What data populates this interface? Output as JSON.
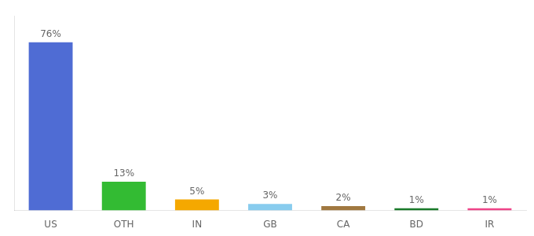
{
  "chart_data": {
    "type": "bar",
    "categories": [
      "US",
      "OTH",
      "IN",
      "GB",
      "CA",
      "BD",
      "IR"
    ],
    "values": [
      76,
      13,
      5,
      3,
      2,
      1,
      1
    ],
    "value_labels": [
      "76%",
      "13%",
      "5%",
      "3%",
      "2%",
      "1%",
      "1%"
    ],
    "colors": [
      "#4f6cd4",
      "#33bb33",
      "#f5a800",
      "#88ccee",
      "#a07840",
      "#1a7a2a",
      "#ee4488"
    ],
    "ylim": [
      0,
      88
    ],
    "data_labels": true,
    "tick_labels": "x",
    "grid": false
  }
}
